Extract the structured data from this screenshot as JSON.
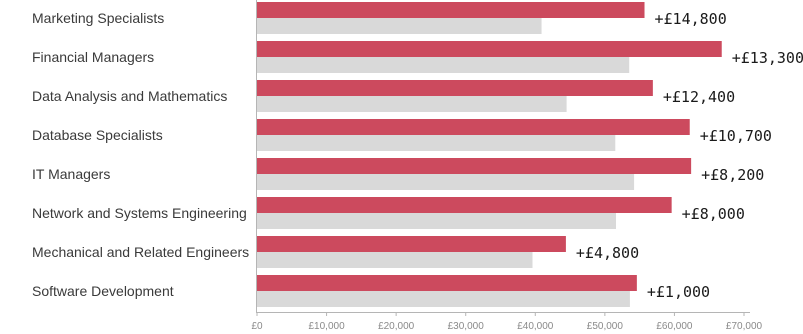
{
  "chart_data": {
    "type": "bar",
    "orientation": "horizontal",
    "categories": [
      "Marketing Specialists",
      "Financial Managers",
      "Data Analysis and Mathematics",
      "Database Specialists",
      "IT Managers",
      "Network and Systems Engineering",
      "Mechanical and Related Engineers",
      "Software Development"
    ],
    "series": [
      {
        "values": [
          55700,
          66800,
          56900,
          62200,
          62400,
          59600,
          44400,
          54600
        ],
        "color": "#cc4a5e"
      },
      {
        "values": [
          40900,
          53500,
          44500,
          51500,
          54200,
          51600,
          39600,
          53600
        ],
        "color": "#d9d9d9"
      }
    ],
    "data_labels": [
      "+£14,800",
      "+£13,300",
      "+£12,400",
      "+£10,700",
      "+£8,200",
      "+£8,000",
      "+£4,800",
      "+£1,000"
    ],
    "x_ticks": [
      {
        "value": 0,
        "label": "£0"
      },
      {
        "value": 10000,
        "label": "£10,000"
      },
      {
        "value": 20000,
        "label": "£20,000"
      },
      {
        "value": 30000,
        "label": "£30,000"
      },
      {
        "value": 40000,
        "label": "£40,000"
      },
      {
        "value": 50000,
        "label": "£50,000"
      },
      {
        "value": 60000,
        "label": "£60,000"
      },
      {
        "value": 70000,
        "label": "£70,000"
      }
    ],
    "xlim": [
      0,
      75000
    ],
    "grid": false,
    "title": "",
    "xlabel": "",
    "ylabel": ""
  }
}
